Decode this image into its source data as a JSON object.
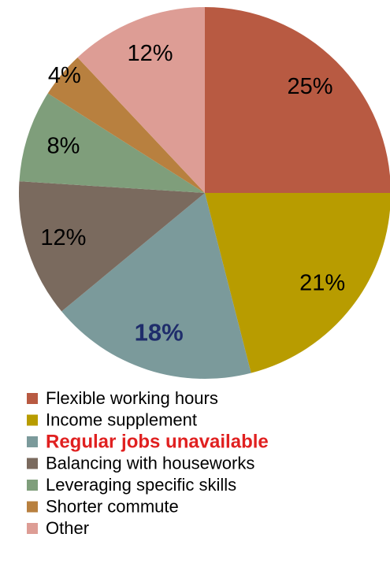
{
  "chart_data": {
    "type": "pie",
    "categories": [
      "Flexible working hours",
      "Income supplement",
      "Regular jobs unavailable",
      "Balancing with houseworks",
      "Leveraging specific skills",
      "Shorter commute",
      "Other"
    ],
    "values": [
      25,
      21,
      18,
      12,
      8,
      4,
      12
    ],
    "value_labels": [
      "25%",
      "21%",
      "18%",
      "12%",
      "8%",
      "4%",
      "12%"
    ],
    "colors": [
      "#b85a42",
      "#b89c00",
      "#7b9a9b",
      "#7a6a5e",
      "#7f9e7b",
      "#b8803f",
      "#dd9d95"
    ],
    "highlight": 2,
    "highlight_label_color": "#1f2d6b",
    "highlight_legend_color": "#e02020",
    "legend": "bottom"
  }
}
